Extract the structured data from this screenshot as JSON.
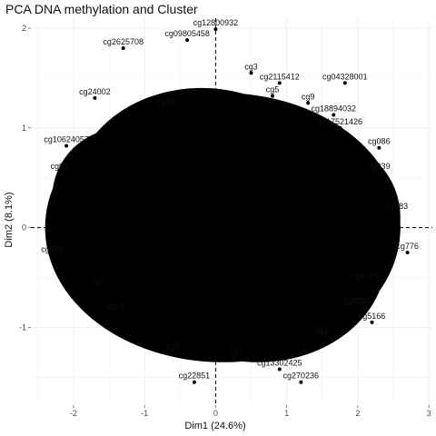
{
  "chart_data": {
    "type": "scatter",
    "title": "PCA DNA methylation and Cluster",
    "xlabel": "Dim1 (24.6%)",
    "ylabel": "Dim2 (8.1%)",
    "xlim": [
      -2.6,
      3.05
    ],
    "ylim": [
      -1.78,
      2.1
    ],
    "xticks": [
      -2,
      -1,
      0,
      1,
      2,
      3
    ],
    "yticks": [
      -1,
      0,
      1,
      2
    ],
    "grid": true,
    "reference_lines": {
      "x": 0,
      "y": 0,
      "style": "dashed"
    },
    "note": "",
    "points": [
      {
        "label": "cg12800932",
        "x": 0.0,
        "y": 1.99
      },
      {
        "label": "cg09805458",
        "x": -0.4,
        "y": 1.88
      },
      {
        "label": "cg04328001",
        "x": 1.82,
        "y": 1.45
      },
      {
        "label": "cg17521426",
        "x": 1.75,
        "y": 1.0
      },
      {
        "label": "cg18894032",
        "x": 1.66,
        "y": 1.13
      },
      {
        "label": "cg2115412",
        "x": 0.9,
        "y": 1.45
      },
      {
        "label": "cg10624057",
        "x": -2.1,
        "y": 0.82
      },
      {
        "label": "cg13302425",
        "x": 0.9,
        "y": -1.42
      },
      {
        "label": "cg270236",
        "x": 1.2,
        "y": -1.55
      },
      {
        "label": "cg2625708",
        "x": -1.3,
        "y": 1.8
      },
      {
        "label": "cg24002",
        "x": -1.7,
        "y": 1.3
      },
      {
        "label": "cg01",
        "x": -2.2,
        "y": 0.55
      },
      {
        "label": "cg028",
        "x": -2.3,
        "y": -0.28
      },
      {
        "label": "cg0",
        "x": -0.6,
        "y": -1.25
      },
      {
        "label": "cg22851",
        "x": -0.3,
        "y": -1.55
      },
      {
        "label": "cg8554",
        "x": 2.0,
        "y": -0.8
      },
      {
        "label": "cg776",
        "x": 2.7,
        "y": -0.25
      },
      {
        "label": "cg583",
        "x": 2.55,
        "y": 0.15
      },
      {
        "label": "cg086",
        "x": 2.3,
        "y": 0.8
      },
      {
        "label": "cg039",
        "x": 2.3,
        "y": 0.55
      },
      {
        "label": "cg4775",
        "x": 2.1,
        "y": -0.55
      },
      {
        "label": "cg5166",
        "x": 2.2,
        "y": -0.95
      },
      {
        "label": "cg61",
        "x": -1.4,
        "y": -0.85
      },
      {
        "label": "cg7",
        "x": -1.65,
        "y": -0.6
      },
      {
        "label": "cg16",
        "x": -0.7,
        "y": 1.2
      },
      {
        "label": "cg3",
        "x": 0.5,
        "y": 1.55
      },
      {
        "label": "cg5",
        "x": 0.8,
        "y": 1.32
      },
      {
        "label": "cg9",
        "x": 1.3,
        "y": 1.25
      },
      {
        "label": "cg1",
        "x": 1.5,
        "y": -1.1
      },
      {
        "label": "cg2",
        "x": 0.3,
        "y": -1.3
      }
    ]
  }
}
